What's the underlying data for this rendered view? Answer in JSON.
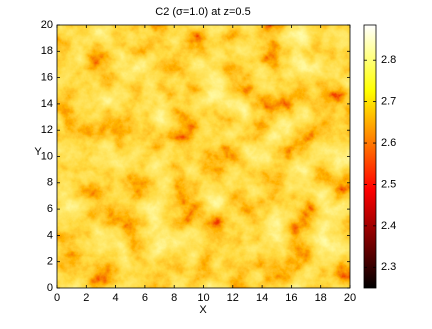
{
  "chart_data": {
    "type": "heatmap",
    "title": "C2 (σ=1.0) at z=0.5",
    "x_label": "X",
    "y_label": "Y",
    "xlim": [
      0,
      20
    ],
    "ylim": [
      0,
      20
    ],
    "xticks": [
      0,
      2,
      4,
      6,
      8,
      10,
      12,
      14,
      16,
      18,
      20
    ],
    "yticks": [
      0,
      2,
      4,
      6,
      8,
      10,
      12,
      14,
      16,
      18,
      20
    ],
    "clim": [
      2.25,
      2.885
    ],
    "cticks": [
      2.3,
      2.4,
      2.5,
      2.6,
      2.7,
      2.8
    ],
    "colormap": [
      "#000000",
      "#ff0000",
      "#ffff00",
      "#ffffff"
    ]
  }
}
